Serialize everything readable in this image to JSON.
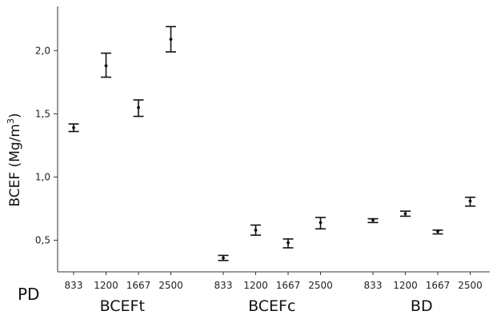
{
  "chart_data": {
    "type": "scatter",
    "title": "",
    "ylabel": "BCEF (Mg/m",
    "ylabel_sup": "3",
    "ylabel_close": ")",
    "xlabel_prefix": "PD",
    "ylim": [
      0.25,
      2.35
    ],
    "yticks": [
      "0,5",
      "1,0",
      "1,5",
      "2,0"
    ],
    "ytick_values": [
      0.5,
      1.0,
      1.5,
      2.0
    ],
    "groups": [
      {
        "name": "BCEFt",
        "points": [
          {
            "pd": "833",
            "mean": 1.39,
            "low": 1.36,
            "high": 1.42
          },
          {
            "pd": "1200",
            "mean": 1.88,
            "low": 1.79,
            "high": 1.98
          },
          {
            "pd": "1667",
            "mean": 1.55,
            "low": 1.48,
            "high": 1.61
          },
          {
            "pd": "2500",
            "mean": 2.09,
            "low": 1.99,
            "high": 2.19
          }
        ]
      },
      {
        "name": "BCEFc",
        "points": [
          {
            "pd": "833",
            "mean": 0.36,
            "low": 0.34,
            "high": 0.38
          },
          {
            "pd": "1200",
            "mean": 0.58,
            "low": 0.54,
            "high": 0.62
          },
          {
            "pd": "1667",
            "mean": 0.48,
            "low": 0.44,
            "high": 0.51
          },
          {
            "pd": "2500",
            "mean": 0.64,
            "low": 0.59,
            "high": 0.68
          }
        ]
      },
      {
        "name": "BD",
        "points": [
          {
            "pd": "833",
            "mean": 0.66,
            "low": 0.64,
            "high": 0.67
          },
          {
            "pd": "1200",
            "mean": 0.71,
            "low": 0.69,
            "high": 0.73
          },
          {
            "pd": "1667",
            "mean": 0.57,
            "low": 0.55,
            "high": 0.58
          },
          {
            "pd": "2500",
            "mean": 0.81,
            "low": 0.77,
            "high": 0.84
          }
        ]
      }
    ],
    "grid": false,
    "legend": "none"
  }
}
